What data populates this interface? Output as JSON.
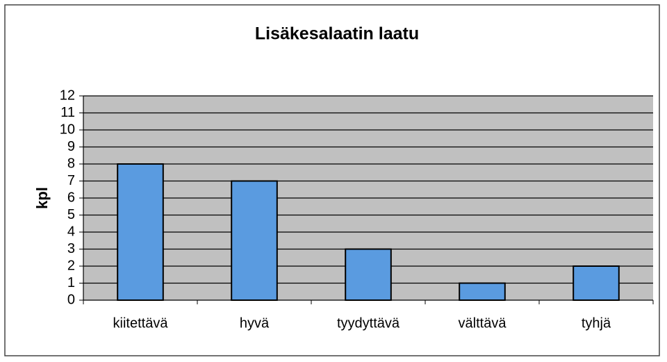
{
  "chart_data": {
    "type": "bar",
    "title": "Lisäkesalaatin laatu",
    "y_label": "kpl",
    "categories": [
      "kiitettävä",
      "hyvä",
      "tyydyttävä",
      "välttävä",
      "tyhjä"
    ],
    "values": [
      8,
      7,
      3,
      1,
      2
    ],
    "color": "#5a9be0",
    "ylim": [
      0,
      12
    ],
    "yticks": [
      0,
      1,
      2,
      3,
      4,
      5,
      6,
      7,
      8,
      9,
      10,
      11,
      12
    ],
    "grid": true
  }
}
